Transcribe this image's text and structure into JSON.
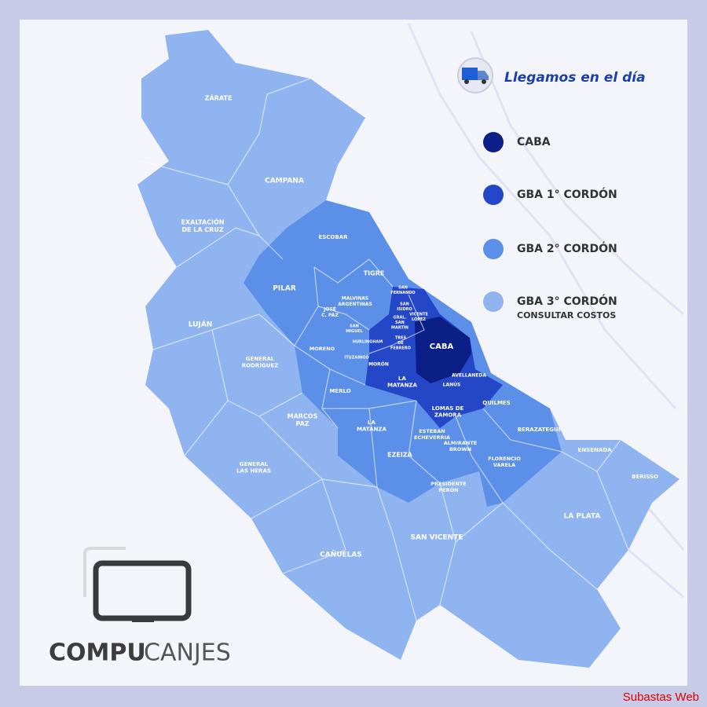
{
  "header": {
    "title": "Llegamos en el día"
  },
  "legend": [
    {
      "label": "CABA",
      "color": "#0c1f86"
    },
    {
      "label": "GBA 1° CORDÓN",
      "color": "#2447c8"
    },
    {
      "label": "GBA 2° CORDÓN",
      "color": "#5b8fe8"
    },
    {
      "label": "GBA 3° CORDÓN",
      "note": "CONSULTAR COSTOS",
      "color": "#90b4f0"
    }
  ],
  "regions": [
    {
      "lines": [
        "ZÁRATE"
      ]
    },
    {
      "lines": [
        "CAMPANA"
      ]
    },
    {
      "lines": [
        "EXALTACIÓN",
        "DE LA CRUZ"
      ]
    },
    {
      "lines": [
        "ESCOBAR"
      ]
    },
    {
      "lines": [
        "PILAR"
      ]
    },
    {
      "lines": [
        "TIGRE"
      ]
    },
    {
      "lines": [
        "SAN",
        "FERNANDO"
      ]
    },
    {
      "lines": [
        "SAN",
        "ISIDRO"
      ]
    },
    {
      "lines": [
        "VICENTE",
        "LÓPEZ"
      ]
    },
    {
      "lines": [
        "GRAL.",
        "SAN",
        "MARTÍN"
      ]
    },
    {
      "lines": [
        "MALVINAS",
        "ARGENTINAS"
      ]
    },
    {
      "lines": [
        "JOSÉ",
        "C. PAZ"
      ]
    },
    {
      "lines": [
        "SAN",
        "MIGUEL"
      ]
    },
    {
      "lines": [
        "HURLINGHAM"
      ]
    },
    {
      "lines": [
        "TRES",
        "DE",
        "FEBRERO"
      ]
    },
    {
      "lines": [
        "CABA"
      ]
    },
    {
      "lines": [
        "LUJÁN"
      ]
    },
    {
      "lines": [
        "GENERAL",
        "RODRIGUEZ"
      ]
    },
    {
      "lines": [
        "MORENO"
      ]
    },
    {
      "lines": [
        "ITUZAINGÓ"
      ]
    },
    {
      "lines": [
        "MORÓN"
      ]
    },
    {
      "lines": [
        "LA",
        "MATANZA"
      ]
    },
    {
      "lines": [
        "AVELLANEDA"
      ]
    },
    {
      "lines": [
        "LANÚS"
      ]
    },
    {
      "lines": [
        "MERLO"
      ]
    },
    {
      "lines": [
        "LA",
        "MATANZA"
      ]
    },
    {
      "lines": [
        "LOMAS DE",
        "ZAMORA"
      ]
    },
    {
      "lines": [
        "QUILMES"
      ]
    },
    {
      "lines": [
        "MARCOS",
        "PAZ"
      ]
    },
    {
      "lines": [
        "ESTEBAN",
        "ECHEVERRIA"
      ]
    },
    {
      "lines": [
        "ALMIRANTE",
        "BROWN"
      ]
    },
    {
      "lines": [
        "BERAZATEGUI"
      ]
    },
    {
      "lines": [
        "EZEIZA"
      ]
    },
    {
      "lines": [
        "FLORENCIO",
        "VARELA"
      ]
    },
    {
      "lines": [
        "ENSENADA"
      ]
    },
    {
      "lines": [
        "BERISSO"
      ]
    },
    {
      "lines": [
        "GENERAL",
        "LAS HERAS"
      ]
    },
    {
      "lines": [
        "PRESIDENTE",
        "PERÓN"
      ]
    },
    {
      "lines": [
        "LA PLATA"
      ]
    },
    {
      "lines": [
        "SAN VICENTE"
      ]
    },
    {
      "lines": [
        "CAÑUELAS"
      ]
    }
  ],
  "logo": {
    "bold": "COMPU",
    "light": "CANJES"
  },
  "watermark": "Subastas Web"
}
